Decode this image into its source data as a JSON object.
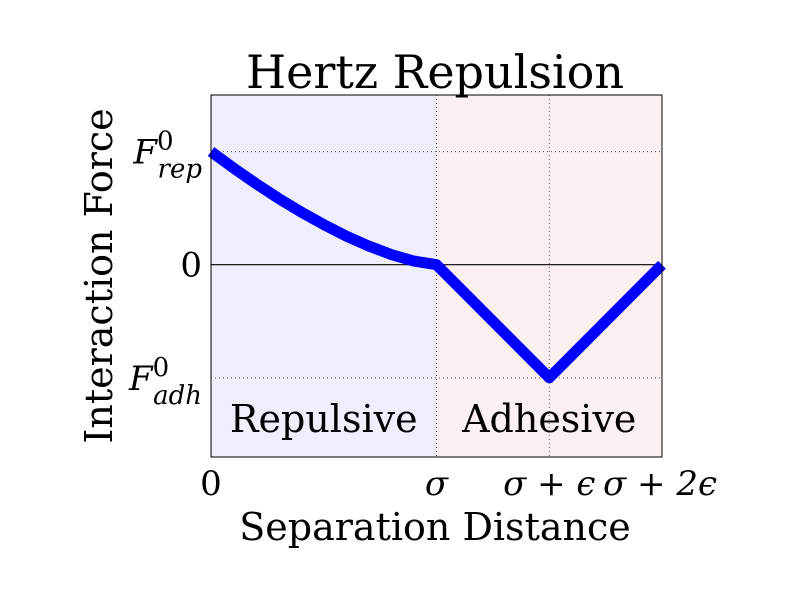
{
  "chart_data": {
    "type": "line",
    "title": "Hertz Repulsion",
    "xlabel": "Separation Distance",
    "ylabel": "Interaction Force",
    "xlim": [
      0,
      2
    ],
    "ylim": [
      -1.7,
      1.5
    ],
    "grid": true,
    "x_ticks": [
      {
        "value": 0,
        "label": "0"
      },
      {
        "value": 1,
        "label": "σ"
      },
      {
        "value": 1.5,
        "label": "σ + ϵ"
      },
      {
        "value": 2,
        "label": "σ + 2ϵ"
      }
    ],
    "y_ticks": [
      {
        "value": 1,
        "label": "F",
        "sup": "0",
        "sub": "rep"
      },
      {
        "value": 0,
        "label": "0"
      },
      {
        "value": -1,
        "label": "F",
        "sup": "0",
        "sub": "adh"
      }
    ],
    "regions": [
      {
        "label": "Repulsive",
        "x": [
          0,
          1
        ],
        "color": "#eeeefd"
      },
      {
        "label": "Adhesive",
        "x": [
          1,
          2
        ],
        "color": "#fdf0f0"
      }
    ],
    "series": [
      {
        "color": "#0000ff",
        "x": [
          0,
          0.1,
          0.2,
          0.3,
          0.4,
          0.5,
          0.6,
          0.7,
          0.8,
          0.9,
          1.0,
          1.5,
          2.0
        ],
        "y": [
          1.0,
          0.854,
          0.716,
          0.586,
          0.465,
          0.354,
          0.253,
          0.164,
          0.089,
          0.032,
          0,
          -1,
          0
        ]
      }
    ]
  }
}
